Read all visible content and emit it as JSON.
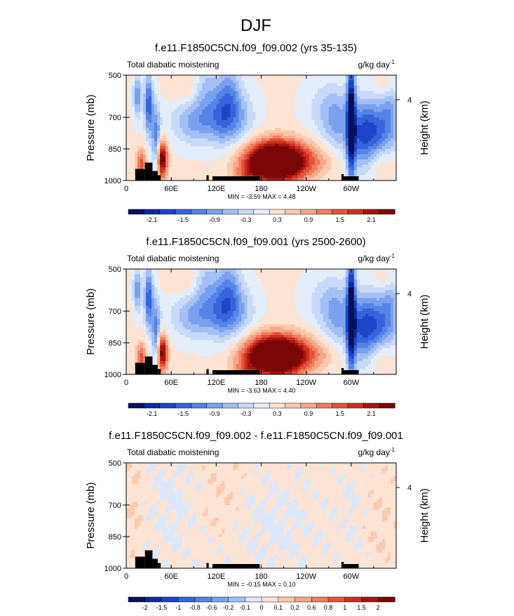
{
  "page": {
    "title": "DJF"
  },
  "colors": {
    "land": "#000000",
    "frame": "#000000"
  },
  "chart_data": [
    {
      "type": "heatmap",
      "title": "f.e11.F1850C5CN.f09_f09.002 (yrs 35-135)",
      "left_label": "Total diabatic moistening",
      "units": "g/kg day",
      "units_exponent": "-1",
      "ylabel": "Pressure (mb)",
      "ylabel_right": "Height (km)",
      "xticks": [
        "0",
        "60E",
        "120E",
        "180",
        "120W",
        "60W"
      ],
      "xtick_values": [
        0,
        60,
        120,
        180,
        240,
        300
      ],
      "xlim": [
        0,
        360
      ],
      "yticks": [
        "500",
        "700",
        "850",
        "1000"
      ],
      "ytick_values": [
        500,
        700,
        850,
        1000
      ],
      "ylim": [
        500,
        1000
      ],
      "right_ticks": [
        "4"
      ],
      "right_tick_values": [
        4
      ],
      "stats": "MIN = -3.59  MAX =  4.48",
      "colorbar": {
        "labels": [
          "-2.1",
          "-1.5",
          "-0.9",
          "-0.3",
          "0.3",
          "0.9",
          "1.5",
          "2.1"
        ],
        "colors": [
          "#08105e",
          "#0c2b9c",
          "#1c45c8",
          "#3564dc",
          "#5583e6",
          "#7aa1ee",
          "#a2c0f4",
          "#c8daf8",
          "#e4eefb",
          "#fde4d4",
          "#fbc9ae",
          "#f7a88a",
          "#ef7f5e",
          "#e4543a",
          "#cd2f1d",
          "#a8150f",
          "#7a0707"
        ]
      },
      "features": [
        {
          "lon": 15,
          "p": 600,
          "slon": 4,
          "sp": 70,
          "v": -1.2
        },
        {
          "lon": 20,
          "p": 920,
          "slon": 5,
          "sp": 50,
          "v": 1.3
        },
        {
          "lon": 30,
          "p": 640,
          "slon": 4,
          "sp": 100,
          "v": -1.8
        },
        {
          "lon": 40,
          "p": 800,
          "slon": 4,
          "sp": 110,
          "v": -1.4
        },
        {
          "lon": 48,
          "p": 900,
          "slon": 5,
          "sp": 60,
          "v": 2.5
        },
        {
          "lon": 95,
          "p": 720,
          "slon": 24,
          "sp": 75,
          "v": -1.1
        },
        {
          "lon": 105,
          "p": 560,
          "slon": 10,
          "sp": 90,
          "v": -0.6
        },
        {
          "lon": 140,
          "p": 560,
          "slon": 10,
          "sp": 90,
          "v": -0.6
        },
        {
          "lon": 128,
          "p": 640,
          "slon": 12,
          "sp": 120,
          "v": -0.8
        },
        {
          "lon": 145,
          "p": 700,
          "slon": 18,
          "sp": 90,
          "v": -1.0
        },
        {
          "lon": 200,
          "p": 910,
          "slon": 28,
          "sp": 65,
          "v": 4.3
        },
        {
          "lon": 160,
          "p": 990,
          "slon": 12,
          "sp": 40,
          "v": 0.7
        },
        {
          "lon": 260,
          "p": 900,
          "slon": 20,
          "sp": 50,
          "v": 0.4
        },
        {
          "lon": 280,
          "p": 720,
          "slon": 14,
          "sp": 110,
          "v": -0.9
        },
        {
          "lon": 300,
          "p": 700,
          "slon": 4,
          "sp": 220,
          "v": -2.6
        },
        {
          "lon": 315,
          "p": 780,
          "slon": 14,
          "sp": 110,
          "v": -1.6
        },
        {
          "lon": 340,
          "p": 760,
          "slon": 16,
          "sp": 100,
          "v": -1.3
        },
        {
          "lon": 352,
          "p": 640,
          "slon": 8,
          "sp": 90,
          "v": -0.6
        },
        {
          "lon": 340,
          "p": 910,
          "slon": 12,
          "sp": 55,
          "v": 0.5
        },
        {
          "lon": 75,
          "p": 560,
          "slon": 14,
          "sp": 50,
          "v": 0.3
        },
        {
          "lon": 260,
          "p": 650,
          "slon": 18,
          "sp": 90,
          "v": -0.4
        },
        {
          "lon": 345,
          "p": 550,
          "slon": 8,
          "sp": 40,
          "v": 0.4
        }
      ]
    },
    {
      "type": "heatmap",
      "title": "f.e11.F1850C5CN.f09_f09.001 (yrs 2500-2600)",
      "left_label": "Total diabatic moistening",
      "units": "g/kg day",
      "units_exponent": "-1",
      "ylabel": "Pressure (mb)",
      "ylabel_right": "Height (km)",
      "xticks": [
        "0",
        "60E",
        "120E",
        "180",
        "120W",
        "60W"
      ],
      "xtick_values": [
        0,
        60,
        120,
        180,
        240,
        300
      ],
      "xlim": [
        0,
        360
      ],
      "yticks": [
        "500",
        "700",
        "850",
        "1000"
      ],
      "ytick_values": [
        500,
        700,
        850,
        1000
      ],
      "ylim": [
        500,
        1000
      ],
      "right_ticks": [
        "4"
      ],
      "right_tick_values": [
        4
      ],
      "stats": "MIN = -3.63  MAX = 4.40",
      "colorbar": {
        "labels": [
          "-2.1",
          "-1.5",
          "-0.9",
          "-0.3",
          "0.3",
          "0.9",
          "1.5",
          "2.1"
        ],
        "colors": [
          "#08105e",
          "#0c2b9c",
          "#1c45c8",
          "#3564dc",
          "#5583e6",
          "#7aa1ee",
          "#a2c0f4",
          "#c8daf8",
          "#e4eefb",
          "#fde4d4",
          "#fbc9ae",
          "#f7a88a",
          "#ef7f5e",
          "#e4543a",
          "#cd2f1d",
          "#a8150f",
          "#7a0707"
        ]
      },
      "features": [
        {
          "lon": 15,
          "p": 600,
          "slon": 4,
          "sp": 70,
          "v": -1.2
        },
        {
          "lon": 20,
          "p": 920,
          "slon": 5,
          "sp": 50,
          "v": 1.3
        },
        {
          "lon": 30,
          "p": 640,
          "slon": 4,
          "sp": 100,
          "v": -1.8
        },
        {
          "lon": 40,
          "p": 800,
          "slon": 4,
          "sp": 110,
          "v": -1.4
        },
        {
          "lon": 48,
          "p": 900,
          "slon": 5,
          "sp": 60,
          "v": 2.4
        },
        {
          "lon": 95,
          "p": 720,
          "slon": 24,
          "sp": 75,
          "v": -1.1
        },
        {
          "lon": 105,
          "p": 560,
          "slon": 10,
          "sp": 90,
          "v": -0.6
        },
        {
          "lon": 140,
          "p": 560,
          "slon": 10,
          "sp": 90,
          "v": -0.6
        },
        {
          "lon": 128,
          "p": 640,
          "slon": 12,
          "sp": 120,
          "v": -0.8
        },
        {
          "lon": 145,
          "p": 700,
          "slon": 18,
          "sp": 90,
          "v": -1.0
        },
        {
          "lon": 200,
          "p": 910,
          "slon": 28,
          "sp": 65,
          "v": 4.2
        },
        {
          "lon": 160,
          "p": 990,
          "slon": 12,
          "sp": 40,
          "v": 0.7
        },
        {
          "lon": 260,
          "p": 900,
          "slon": 20,
          "sp": 50,
          "v": 0.4
        },
        {
          "lon": 280,
          "p": 720,
          "slon": 14,
          "sp": 110,
          "v": -0.9
        },
        {
          "lon": 300,
          "p": 700,
          "slon": 4,
          "sp": 220,
          "v": -2.6
        },
        {
          "lon": 315,
          "p": 780,
          "slon": 14,
          "sp": 110,
          "v": -1.6
        },
        {
          "lon": 340,
          "p": 760,
          "slon": 16,
          "sp": 100,
          "v": -1.3
        },
        {
          "lon": 352,
          "p": 640,
          "slon": 8,
          "sp": 90,
          "v": -0.6
        },
        {
          "lon": 340,
          "p": 910,
          "slon": 12,
          "sp": 55,
          "v": 0.5
        },
        {
          "lon": 75,
          "p": 560,
          "slon": 14,
          "sp": 50,
          "v": 0.3
        },
        {
          "lon": 260,
          "p": 650,
          "slon": 18,
          "sp": 90,
          "v": -0.4
        },
        {
          "lon": 345,
          "p": 550,
          "slon": 8,
          "sp": 40,
          "v": 0.4
        }
      ]
    },
    {
      "type": "heatmap",
      "title": "f.e11.F1850C5CN.f09_f09.002 - f.e11.F1850C5CN.f09_f09.001",
      "left_label": "Total diabatic moistening",
      "units": "g/kg day",
      "units_exponent": "-1",
      "ylabel": "Pressure (mb)",
      "ylabel_right": "Height (km)",
      "xticks": [
        "0",
        "60E",
        "120E",
        "180",
        "120W",
        "60W"
      ],
      "xtick_values": [
        0,
        60,
        120,
        180,
        240,
        300
      ],
      "xlim": [
        0,
        360
      ],
      "yticks": [
        "500",
        "700",
        "850",
        "1000"
      ],
      "ytick_values": [
        500,
        700,
        850,
        1000
      ],
      "ylim": [
        500,
        1000
      ],
      "right_ticks": [
        "4"
      ],
      "right_tick_values": [
        4
      ],
      "stats": "MIN = -0.15  MAX =  0.10",
      "colorbar": {
        "labels": [
          "-2",
          "-1.5",
          "-1",
          "-0.8",
          "-0.6",
          "-0.2",
          "-0.1",
          "0",
          "0.1",
          "0.2",
          "0.6",
          "0.8",
          "1",
          "1.5",
          "2"
        ],
        "colors": [
          "#08105e",
          "#0c2b9c",
          "#1c45c8",
          "#3564dc",
          "#5583e6",
          "#7aa1ee",
          "#a2c0f4",
          "#dce8fa",
          "#fde4d4",
          "#fbc9ae",
          "#f7a88a",
          "#ef7f5e",
          "#e4543a",
          "#cd2f1d",
          "#a8150f",
          "#7a0707"
        ]
      },
      "features": [
        {
          "lon": 10,
          "p": 700,
          "slon": 8,
          "sp": 150,
          "v": 0.06
        },
        {
          "lon": 60,
          "p": 700,
          "slon": 20,
          "sp": 200,
          "v": -0.06
        },
        {
          "lon": 130,
          "p": 650,
          "slon": 20,
          "sp": 150,
          "v": 0.05
        },
        {
          "lon": 200,
          "p": 800,
          "slon": 40,
          "sp": 150,
          "v": -0.06
        },
        {
          "lon": 300,
          "p": 700,
          "slon": 6,
          "sp": 200,
          "v": -0.05
        },
        {
          "lon": 340,
          "p": 780,
          "slon": 12,
          "sp": 150,
          "v": 0.05
        }
      ]
    }
  ]
}
